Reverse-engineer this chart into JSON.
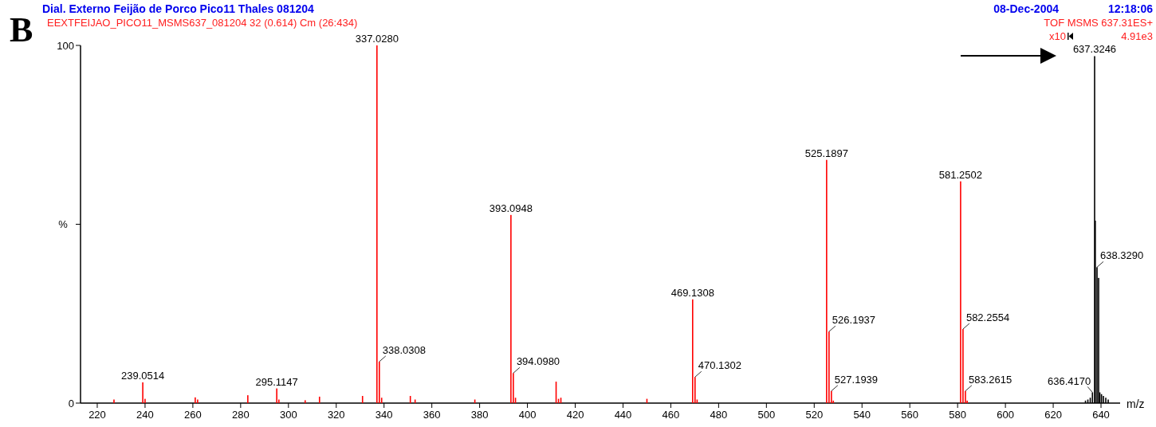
{
  "chart_data": {
    "type": "bar",
    "title": "Dial. Externo Feijão de Porco Pico11 Thales 081204",
    "subtitle": "EEXTFEIJAO_PICO11_MSMS637_081204 32 (0.614) Cm (26:434)",
    "xlabel": "m/z",
    "ylabel": "%",
    "xlim": [
      213,
      648
    ],
    "xticks": [
      220,
      240,
      260,
      280,
      300,
      320,
      340,
      360,
      380,
      400,
      420,
      440,
      460,
      480,
      500,
      520,
      540,
      560,
      580,
      600,
      620,
      640
    ],
    "ylim": [
      0,
      100
    ],
    "yticks": [
      0,
      {
        "value": 50,
        "label": null
      },
      100
    ],
    "grid": false,
    "series": [
      {
        "color": "#ff0000",
        "x": [
          227,
          239.0514,
          240,
          261,
          262,
          283,
          295.1147,
          296,
          307,
          313,
          331,
          337.028,
          338.0308,
          339,
          351,
          353,
          378,
          393.0948,
          394.098,
          395,
          412,
          413,
          414,
          450,
          469.1308,
          470.1302,
          471,
          525.1897,
          526.1937,
          527.1939,
          528,
          581.2502,
          582.2554,
          583.2615,
          584
        ],
        "values": [
          1,
          5.8,
          1.2,
          1.6,
          1,
          2.2,
          4.1,
          1,
          0.8,
          1.8,
          2,
          100,
          11.6,
          1.5,
          2,
          1,
          1,
          52.6,
          8.4,
          1.5,
          6,
          1.2,
          1.5,
          1.2,
          29,
          7.3,
          1,
          68,
          20,
          3.4,
          0.7,
          62,
          20.7,
          3.4,
          0.7
        ]
      },
      {
        "color": "#000000",
        "x": [
          633.5,
          634.5,
          635.5,
          636.417,
          637.3246,
          637.6,
          638.329,
          639,
          639.5,
          640.2,
          641,
          642,
          643
        ],
        "values": [
          0.7,
          1,
          1.5,
          3,
          97,
          51,
          38,
          35,
          3,
          2.5,
          2,
          1.5,
          1
        ]
      }
    ],
    "annotations": [
      "B",
      "08-Dec-2004",
      "12:18:06",
      "TOF MSMS 637.31ES+",
      "x10",
      "4.91e3",
      {
        "text": "239.0514",
        "x": 239.0514,
        "y": 5.8
      },
      {
        "text": "295.1147",
        "x": 295.1147,
        "y": 4.1
      },
      {
        "text": "337.0280",
        "x": 337.028,
        "y": 100
      },
      {
        "text": "338.0308",
        "x": 338.0308,
        "y": 11.6
      },
      {
        "text": "393.0948",
        "x": 393.0948,
        "y": 52.6
      },
      {
        "text": "394.0980",
        "x": 394.098,
        "y": 8.4
      },
      {
        "text": "469.1308",
        "x": 469.1308,
        "y": 29
      },
      {
        "text": "470.1302",
        "x": 470.1302,
        "y": 7.3
      },
      {
        "text": "525.1897",
        "x": 525.1897,
        "y": 68
      },
      {
        "text": "526.1937",
        "x": 526.1937,
        "y": 20
      },
      {
        "text": "527.1939",
        "x": 527.1939,
        "y": 3.4
      },
      {
        "text": "581.2502",
        "x": 581.2502,
        "y": 62
      },
      {
        "text": "582.2554",
        "x": 582.2554,
        "y": 20.7
      },
      {
        "text": "583.2615",
        "x": 583.2615,
        "y": 3.4
      },
      {
        "text": "636.4170",
        "x": 636.417,
        "y": 3
      },
      {
        "text": "637.3246",
        "x": 637.3246,
        "y": 97
      },
      {
        "text": "638.3290",
        "x": 638.329,
        "y": 38
      }
    ]
  }
}
